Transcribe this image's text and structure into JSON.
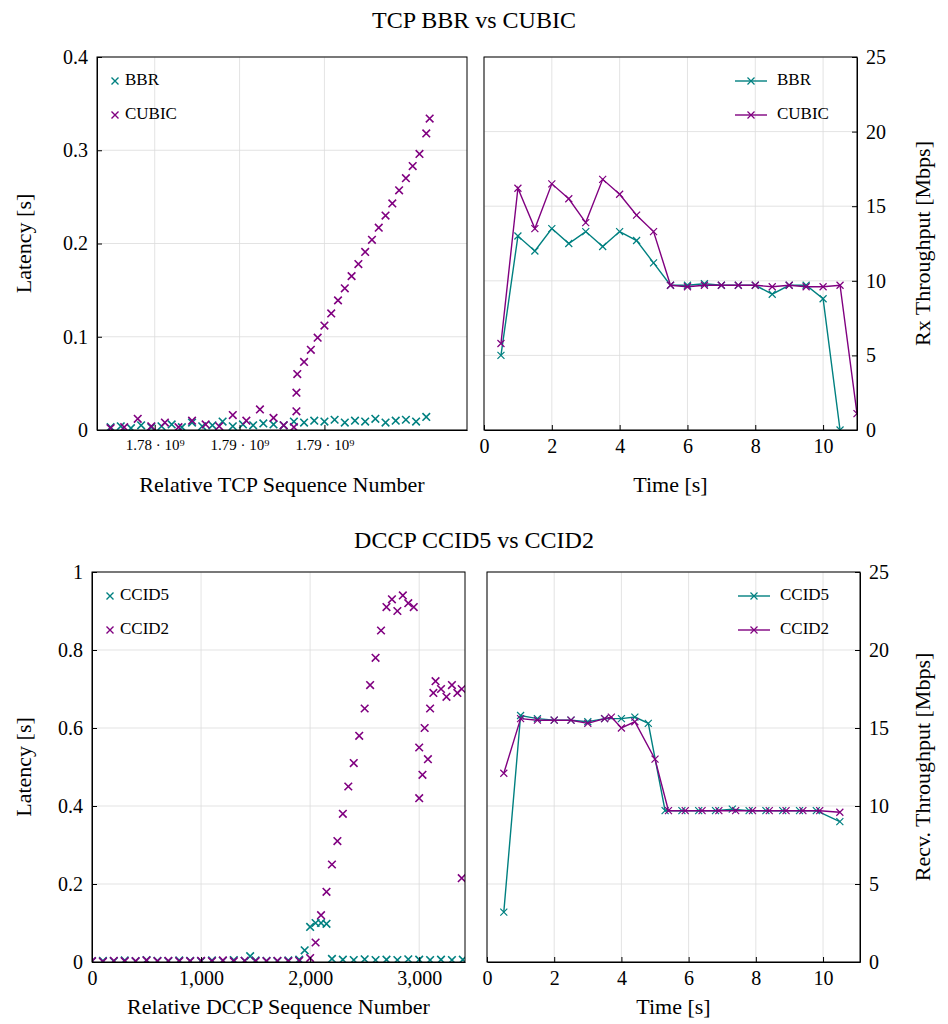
{
  "chart_data": [
    {
      "type": "scatter",
      "title": "TCP BBR vs CUBIC",
      "xlabel": "Relative TCP Sequence Number",
      "ylabel": "Latency [s]",
      "xlim": [
        1776600000,
        1798400000
      ],
      "xticks": [
        {
          "value": 1780000000,
          "label": "1.78 · 10⁹"
        },
        {
          "value": 1785000000,
          "label": "1.79 · 10⁹"
        },
        {
          "value": 1790000000,
          "label": "1.79 · 10⁹"
        }
      ],
      "ylim": [
        0,
        0.4
      ],
      "yticks": [
        0,
        0.1,
        0.2,
        0.3,
        0.4
      ],
      "grid": true,
      "legend": "upper left",
      "marker": "x",
      "series": [
        {
          "name": "BBR",
          "color": "#008080",
          "x": [
            1777400000,
            1778000000,
            1778600000,
            1779200000,
            1779800000,
            1780400000,
            1781000000,
            1781600000,
            1782200000,
            1782800000,
            1783400000,
            1784000000,
            1784600000,
            1785200000,
            1785800000,
            1786400000,
            1787000000,
            1787600000,
            1788200000,
            1788800000,
            1789400000,
            1790000000,
            1790600000,
            1791200000,
            1791800000,
            1792400000,
            1793000000,
            1793600000,
            1794200000,
            1794800000,
            1795400000,
            1796000000
          ],
          "values": [
            0.003,
            0.004,
            0.002,
            0.005,
            0.003,
            0.004,
            0.006,
            0.003,
            0.008,
            0.004,
            0.005,
            0.009,
            0.004,
            0.006,
            0.005,
            0.007,
            0.006,
            0.005,
            0.009,
            0.008,
            0.01,
            0.009,
            0.011,
            0.008,
            0.01,
            0.009,
            0.012,
            0.008,
            0.01,
            0.011,
            0.009,
            0.014
          ]
        },
        {
          "name": "CUBIC",
          "color": "#800080",
          "x": [
            1777400000,
            1778200000,
            1779000000,
            1779800000,
            1780600000,
            1781400000,
            1782200000,
            1783000000,
            1783800000,
            1784600000,
            1785400000,
            1786200000,
            1787000000,
            1787600000,
            1788200000,
            1788350000,
            1788350000,
            1788400000,
            1788800000,
            1789200000,
            1789600000,
            1790000000,
            1790400000,
            1790800000,
            1791200000,
            1791600000,
            1792000000,
            1792400000,
            1792800000,
            1793200000,
            1793600000,
            1794000000,
            1794400000,
            1794800000,
            1795200000,
            1795600000,
            1796000000,
            1796200000
          ],
          "values": [
            0.002,
            0.003,
            0.012,
            0.004,
            0.008,
            0.003,
            0.01,
            0.006,
            0.004,
            0.016,
            0.01,
            0.022,
            0.013,
            0.005,
            0.003,
            0.02,
            0.04,
            0.06,
            0.073,
            0.086,
            0.099,
            0.112,
            0.125,
            0.139,
            0.152,
            0.165,
            0.178,
            0.191,
            0.204,
            0.217,
            0.23,
            0.243,
            0.257,
            0.27,
            0.283,
            0.296,
            0.318,
            0.334
          ]
        }
      ]
    },
    {
      "type": "line",
      "xlabel": "Time [s]",
      "y2label": "Rx Throughput [Mbps]",
      "xlim": [
        0,
        11
      ],
      "xticks": [
        0,
        2,
        4,
        6,
        8,
        10
      ],
      "y2lim": [
        0,
        25
      ],
      "y2ticks": [
        0,
        5,
        10,
        15,
        20,
        25
      ],
      "grid": true,
      "legend": "upper right",
      "marker": "x",
      "series": [
        {
          "name": "BBR",
          "color": "#008080",
          "axis": "y2",
          "x": [
            0.5,
            1,
            1.5,
            2,
            2.5,
            3,
            3.5,
            4,
            4.5,
            5,
            5.5,
            6,
            6.5,
            7,
            7.5,
            8,
            8.5,
            9,
            9.5,
            10,
            10.5
          ],
          "values": [
            5.0,
            13.0,
            12.0,
            13.5,
            12.5,
            13.3,
            12.3,
            13.3,
            12.7,
            11.2,
            9.7,
            9.7,
            9.8,
            9.7,
            9.7,
            9.7,
            9.1,
            9.7,
            9.7,
            8.8,
            0
          ]
        },
        {
          "name": "CUBIC",
          "color": "#800080",
          "axis": "y2",
          "x": [
            0.5,
            1,
            1.5,
            2,
            2.5,
            3,
            3.5,
            4,
            4.5,
            5,
            5.5,
            6,
            6.5,
            7,
            7.5,
            8,
            8.5,
            9,
            9.5,
            10,
            10.5,
            11
          ],
          "values": [
            5.8,
            16.2,
            13.5,
            16.5,
            15.5,
            13.9,
            16.8,
            15.8,
            14.4,
            13.3,
            9.7,
            9.6,
            9.7,
            9.7,
            9.7,
            9.7,
            9.6,
            9.7,
            9.6,
            9.6,
            9.7,
            1.1
          ]
        }
      ]
    },
    {
      "type": "scatter",
      "title": "DCCP CCID5 vs CCID2",
      "xlabel": "Relative DCCP Sequence Number",
      "ylabel": "Latency [s]",
      "xlim": [
        0,
        3420
      ],
      "xticks": [
        0,
        {
          "value": 1000,
          "label": "1,000"
        },
        {
          "value": 2000,
          "label": "2,000"
        },
        {
          "value": 3000,
          "label": "3,000"
        }
      ],
      "ylim": [
        0,
        1
      ],
      "yticks": [
        0,
        0.2,
        0.4,
        0.6,
        0.8,
        1
      ],
      "grid": true,
      "legend": "upper left",
      "marker": "x",
      "series": [
        {
          "name": "CCID5",
          "color": "#008080",
          "x": [
            0,
            100,
            200,
            300,
            400,
            500,
            600,
            700,
            800,
            900,
            1000,
            1100,
            1200,
            1300,
            1400,
            1450,
            1500,
            1600,
            1700,
            1800,
            1900,
            1950,
            2000,
            2050,
            2100,
            2150,
            2200,
            2300,
            2400,
            2500,
            2600,
            2700,
            2800,
            2900,
            3000,
            3100,
            3200,
            3300,
            3400
          ],
          "values": [
            0.002,
            0.003,
            0.002,
            0.004,
            0.002,
            0.005,
            0.003,
            0.002,
            0.004,
            0.003,
            0.002,
            0.004,
            0.003,
            0.005,
            0.003,
            0.015,
            0.004,
            0.003,
            0.002,
            0.004,
            0.006,
            0.03,
            0.09,
            0.1,
            0.1,
            0.098,
            0.008,
            0.006,
            0.005,
            0.007,
            0.005,
            0.006,
            0.005,
            0.007,
            0.006,
            0.005,
            0.006,
            0.005,
            0.006
          ]
        },
        {
          "name": "CCID2",
          "color": "#800080",
          "x": [
            0,
            100,
            200,
            300,
            400,
            500,
            600,
            700,
            800,
            900,
            1000,
            1100,
            1200,
            1300,
            1400,
            1500,
            1600,
            1700,
            1800,
            1900,
            2000,
            2050,
            2100,
            2150,
            2200,
            2250,
            2300,
            2350,
            2400,
            2450,
            2500,
            2550,
            2600,
            2650,
            2700,
            2750,
            2800,
            2850,
            2900,
            2950,
            3000,
            3000,
            3030,
            3050,
            3080,
            3100,
            3130,
            3150,
            3200,
            3250,
            3300,
            3350,
            3390,
            3390
          ],
          "values": [
            0.002,
            0.001,
            0.003,
            0.002,
            0.002,
            0.004,
            0.002,
            0.003,
            0.002,
            0.002,
            0.003,
            0.002,
            0.004,
            0.002,
            0.003,
            0.002,
            0.002,
            0.003,
            0.002,
            0.003,
            0.01,
            0.05,
            0.12,
            0.18,
            0.25,
            0.31,
            0.38,
            0.45,
            0.51,
            0.58,
            0.65,
            0.71,
            0.78,
            0.85,
            0.91,
            0.93,
            0.9,
            0.94,
            0.92,
            0.91,
            0.42,
            0.55,
            0.48,
            0.6,
            0.52,
            0.65,
            0.69,
            0.72,
            0.7,
            0.68,
            0.71,
            0.69,
            0.7,
            0.215
          ]
        }
      ]
    },
    {
      "type": "line",
      "xlabel": "Time [s]",
      "y2label": "Recv. Throughput [Mbps]",
      "xlim": [
        0,
        11.1
      ],
      "xticks": [
        0,
        2,
        4,
        6,
        8,
        10
      ],
      "y2lim": [
        0,
        25
      ],
      "y2ticks": [
        0,
        5,
        10,
        15,
        20,
        25
      ],
      "grid": true,
      "legend": "upper right",
      "marker": "x",
      "series": [
        {
          "name": "CCID5",
          "color": "#008080",
          "axis": "y2",
          "x": [
            0.5,
            1,
            1.5,
            2,
            2.5,
            3,
            3.5,
            4,
            4.4,
            4.8,
            5.3,
            5.8,
            6.3,
            6.8,
            7.3,
            7.8,
            8.3,
            8.8,
            9.3,
            9.8,
            10.5
          ],
          "values": [
            3.2,
            15.8,
            15.6,
            15.5,
            15.5,
            15.4,
            15.6,
            15.6,
            15.7,
            15.3,
            9.7,
            9.7,
            9.7,
            9.7,
            9.8,
            9.7,
            9.7,
            9.7,
            9.7,
            9.7,
            9.0
          ]
        },
        {
          "name": "CCID2",
          "color": "#800080",
          "axis": "y2",
          "x": [
            0.5,
            1,
            1.5,
            2,
            2.5,
            3,
            3.5,
            3.7,
            4,
            4.4,
            5,
            5.4,
            5.9,
            6.4,
            6.9,
            7.4,
            7.9,
            8.4,
            8.9,
            9.4,
            9.9,
            10.5
          ],
          "values": [
            12.1,
            15.6,
            15.5,
            15.5,
            15.5,
            15.3,
            15.6,
            15.7,
            15.0,
            15.4,
            13.0,
            9.7,
            9.7,
            9.7,
            9.7,
            9.7,
            9.7,
            9.7,
            9.7,
            9.7,
            9.7,
            9.6
          ]
        }
      ]
    }
  ]
}
